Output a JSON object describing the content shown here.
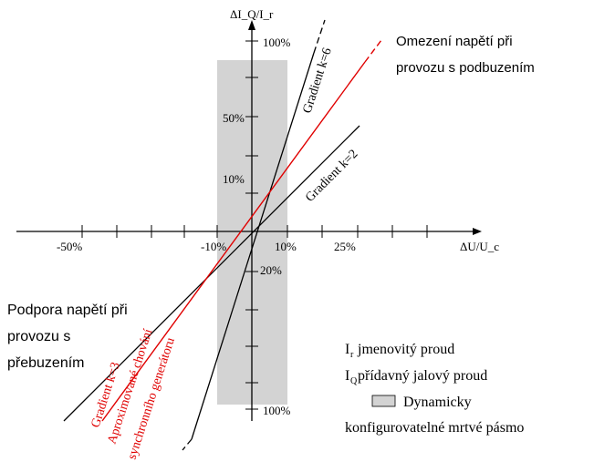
{
  "axes": {
    "y_label": "ΔI_Q/I_r",
    "x_label": "ΔU/U_c",
    "x_ticks": [
      "-50%",
      "-10%",
      "10%",
      "25%"
    ],
    "y_ticks_upper": [
      "100%",
      "50%",
      "10%"
    ],
    "y_ticks_lower": [
      "20%",
      "100%"
    ]
  },
  "lines": {
    "gradient_k6": "Gradient k=6",
    "gradient_k2": "Gradient k=2",
    "gradient_k3": "Gradient k=3",
    "approx_line1": "Aproximované chování",
    "approx_line2": "synchronního generátoru"
  },
  "annotations": {
    "under_excitation_1": "Omezení  napětí při",
    "under_excitation_2": "provozu s podbuzením",
    "over_excitation_1": "Podpora napětí při",
    "over_excitation_2": "provozu s",
    "over_excitation_3": "přebuzením"
  },
  "legend": {
    "rated_current": "I  jmenovitý  proud",
    "rated_sub": "r",
    "reactive_current": "I  přídavný  jalový  proud",
    "reactive_sub": "Q",
    "deadband_1": "Dynamicky",
    "deadband_2": "konfigurovatelné  mrtvé  pásmo"
  },
  "colors": {
    "red": "#e00000",
    "deadband": "#d3d3d3",
    "axis": "#000000"
  }
}
